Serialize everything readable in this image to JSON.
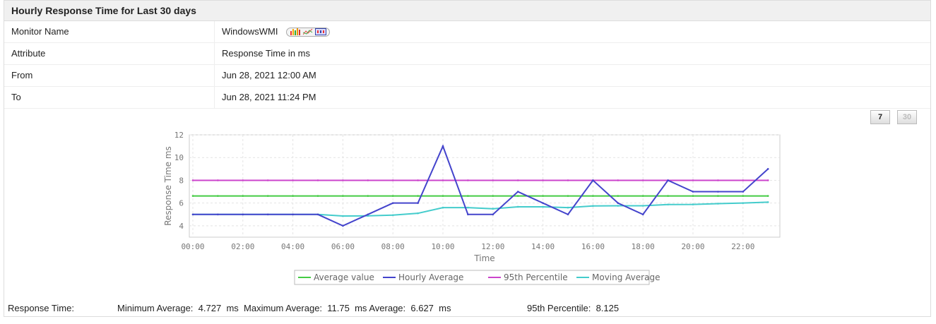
{
  "title": "Hourly Response Time for Last 30 days",
  "details": [
    {
      "label": "Monitor Name",
      "value": "WindowsWMI"
    },
    {
      "label": "Attribute",
      "value": "Response Time in ms"
    },
    {
      "label": "From",
      "value": "Jun 28, 2021 12:00 AM"
    },
    {
      "label": "To",
      "value": "Jun 28, 2021 11:24 PM"
    }
  ],
  "report_icons": [
    "bar-chart-icon",
    "line-chart-icon",
    "table-icon"
  ],
  "period_buttons": {
    "seven": "7",
    "thirty": "30"
  },
  "summary": {
    "label": "Response Time:",
    "min_label": "Minimum Average:",
    "min": "4.727",
    "min_unit": "ms",
    "max_label": "Maximum Average:",
    "max": "11.75",
    "max_unit": "ms",
    "avg_label": "Average:",
    "avg": "6.627",
    "avg_unit": "ms",
    "p95_label": "95th Percentile:",
    "p95": "8.125"
  },
  "chart_data": {
    "type": "line",
    "xlabel": "Time",
    "ylabel": "Response Time ms",
    "ylim": [
      3,
      12
    ],
    "grid": true,
    "legend": "bottom",
    "x": [
      "00:00",
      "01:00",
      "02:00",
      "03:00",
      "04:00",
      "05:00",
      "06:00",
      "07:00",
      "08:00",
      "09:00",
      "10:00",
      "11:00",
      "12:00",
      "13:00",
      "14:00",
      "15:00",
      "16:00",
      "17:00",
      "18:00",
      "19:00",
      "20:00",
      "21:00",
      "22:00",
      "23:00"
    ],
    "xticks": [
      "00:00",
      "02:00",
      "04:00",
      "06:00",
      "08:00",
      "10:00",
      "12:00",
      "14:00",
      "16:00",
      "18:00",
      "20:00",
      "22:00"
    ],
    "yticks": [
      4,
      6,
      8,
      10,
      12
    ],
    "series": [
      {
        "name": "Average value",
        "color": "#44cc44",
        "values": [
          6.627,
          6.627,
          6.627,
          6.627,
          6.627,
          6.627,
          6.627,
          6.627,
          6.627,
          6.627,
          6.627,
          6.627,
          6.627,
          6.627,
          6.627,
          6.627,
          6.627,
          6.627,
          6.627,
          6.627,
          6.627,
          6.627,
          6.627,
          6.627
        ]
      },
      {
        "name": "Hourly Average",
        "color": "#4444cc",
        "values": [
          5,
          5,
          5,
          5,
          5,
          5,
          4,
          5,
          6,
          6,
          11,
          5,
          5,
          7,
          6,
          5,
          8,
          6,
          5,
          8,
          7,
          7,
          7,
          9
        ]
      },
      {
        "name": "95th Percentile",
        "color": "#cc44cc",
        "values": [
          8,
          8,
          8,
          8,
          8,
          8,
          8,
          8,
          8,
          8,
          8,
          8,
          8,
          8,
          8,
          8,
          8,
          8,
          8,
          8,
          8,
          8,
          8,
          8
        ]
      },
      {
        "name": "Moving Average",
        "color": "#44cccc",
        "values": [
          5,
          5,
          5,
          5,
          5,
          5,
          4.86,
          4.88,
          4.94,
          5.1,
          5.6,
          5.6,
          5.5,
          5.67,
          5.67,
          5.6,
          5.75,
          5.76,
          5.76,
          5.87,
          5.88,
          5.95,
          6.0,
          6.08
        ]
      }
    ]
  }
}
